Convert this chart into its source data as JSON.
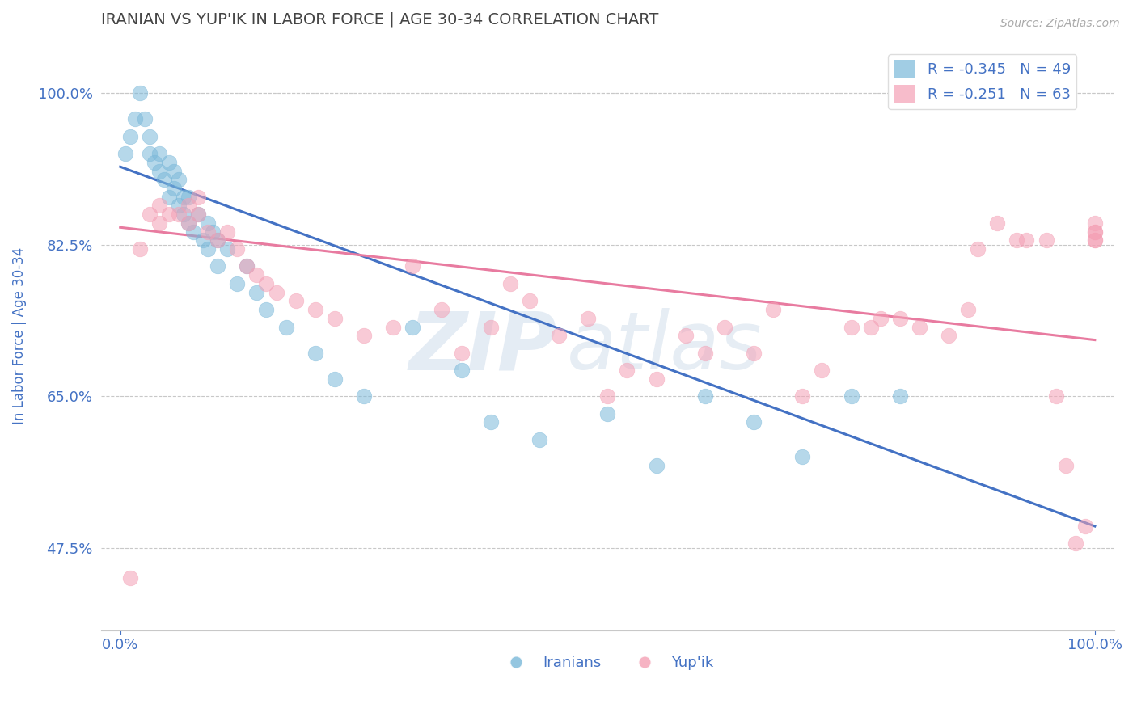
{
  "title": "IRANIAN VS YUP'IK IN LABOR FORCE | AGE 30-34 CORRELATION CHART",
  "source_text": "Source: ZipAtlas.com",
  "ylabel": "In Labor Force | Age 30-34",
  "xlim": [
    -0.02,
    1.02
  ],
  "ylim": [
    0.38,
    1.06
  ],
  "yticks": [
    0.475,
    0.65,
    0.825,
    1.0
  ],
  "ytick_labels": [
    "47.5%",
    "65.0%",
    "82.5%",
    "100.0%"
  ],
  "xtick_labels": [
    "0.0%",
    "100.0%"
  ],
  "xticks": [
    0.0,
    1.0
  ],
  "iranian_color": "#7ab8d9",
  "yupik_color": "#f4a0b5",
  "legend_R_iranian": "R = -0.345",
  "legend_N_iranian": "N = 49",
  "legend_R_yupik": "R = -0.251",
  "legend_N_yupik": "N = 63",
  "watermark_zip": "ZIP",
  "watermark_atlas": "atlas",
  "background_color": "#ffffff",
  "grid_color": "#c8c8c8",
  "title_color": "#444444",
  "axis_label_color": "#4472c4",
  "tick_label_color": "#4472c4",
  "iranian_scatter_x": [
    0.005,
    0.01,
    0.015,
    0.02,
    0.025,
    0.03,
    0.03,
    0.035,
    0.04,
    0.04,
    0.045,
    0.05,
    0.05,
    0.055,
    0.055,
    0.06,
    0.06,
    0.065,
    0.065,
    0.07,
    0.07,
    0.075,
    0.08,
    0.085,
    0.09,
    0.09,
    0.095,
    0.1,
    0.1,
    0.11,
    0.12,
    0.13,
    0.14,
    0.15,
    0.17,
    0.2,
    0.22,
    0.25,
    0.3,
    0.35,
    0.38,
    0.43,
    0.5,
    0.55,
    0.6,
    0.65,
    0.7,
    0.75,
    0.8
  ],
  "iranian_scatter_y": [
    0.93,
    0.95,
    0.97,
    1.0,
    0.97,
    0.95,
    0.93,
    0.92,
    0.93,
    0.91,
    0.9,
    0.92,
    0.88,
    0.91,
    0.89,
    0.9,
    0.87,
    0.88,
    0.86,
    0.88,
    0.85,
    0.84,
    0.86,
    0.83,
    0.85,
    0.82,
    0.84,
    0.83,
    0.8,
    0.82,
    0.78,
    0.8,
    0.77,
    0.75,
    0.73,
    0.7,
    0.67,
    0.65,
    0.73,
    0.68,
    0.62,
    0.6,
    0.63,
    0.57,
    0.65,
    0.62,
    0.58,
    0.65,
    0.65
  ],
  "yupik_scatter_x": [
    0.01,
    0.02,
    0.03,
    0.04,
    0.04,
    0.05,
    0.06,
    0.07,
    0.07,
    0.08,
    0.08,
    0.09,
    0.1,
    0.11,
    0.12,
    0.13,
    0.14,
    0.15,
    0.16,
    0.18,
    0.2,
    0.22,
    0.25,
    0.28,
    0.3,
    0.33,
    0.35,
    0.38,
    0.4,
    0.42,
    0.45,
    0.48,
    0.5,
    0.52,
    0.55,
    0.58,
    0.6,
    0.62,
    0.65,
    0.67,
    0.7,
    0.72,
    0.75,
    0.77,
    0.78,
    0.8,
    0.82,
    0.85,
    0.87,
    0.88,
    0.9,
    0.92,
    0.93,
    0.95,
    0.96,
    0.97,
    0.98,
    0.99,
    1.0,
    1.0,
    1.0,
    1.0,
    1.0
  ],
  "yupik_scatter_y": [
    0.44,
    0.82,
    0.86,
    0.87,
    0.85,
    0.86,
    0.86,
    0.87,
    0.85,
    0.88,
    0.86,
    0.84,
    0.83,
    0.84,
    0.82,
    0.8,
    0.79,
    0.78,
    0.77,
    0.76,
    0.75,
    0.74,
    0.72,
    0.73,
    0.8,
    0.75,
    0.7,
    0.73,
    0.78,
    0.76,
    0.72,
    0.74,
    0.65,
    0.68,
    0.67,
    0.72,
    0.7,
    0.73,
    0.7,
    0.75,
    0.65,
    0.68,
    0.73,
    0.73,
    0.74,
    0.74,
    0.73,
    0.72,
    0.75,
    0.82,
    0.85,
    0.83,
    0.83,
    0.83,
    0.65,
    0.57,
    0.48,
    0.5,
    0.83,
    0.83,
    0.84,
    0.84,
    0.85
  ],
  "trend_iranian_start_x": 0.0,
  "trend_iranian_start_y": 0.915,
  "trend_iranian_end_x": 1.0,
  "trend_iranian_end_y": 0.5,
  "trend_yupik_start_x": 0.0,
  "trend_yupik_start_y": 0.845,
  "trend_yupik_end_x": 1.0,
  "trend_yupik_end_y": 0.715
}
